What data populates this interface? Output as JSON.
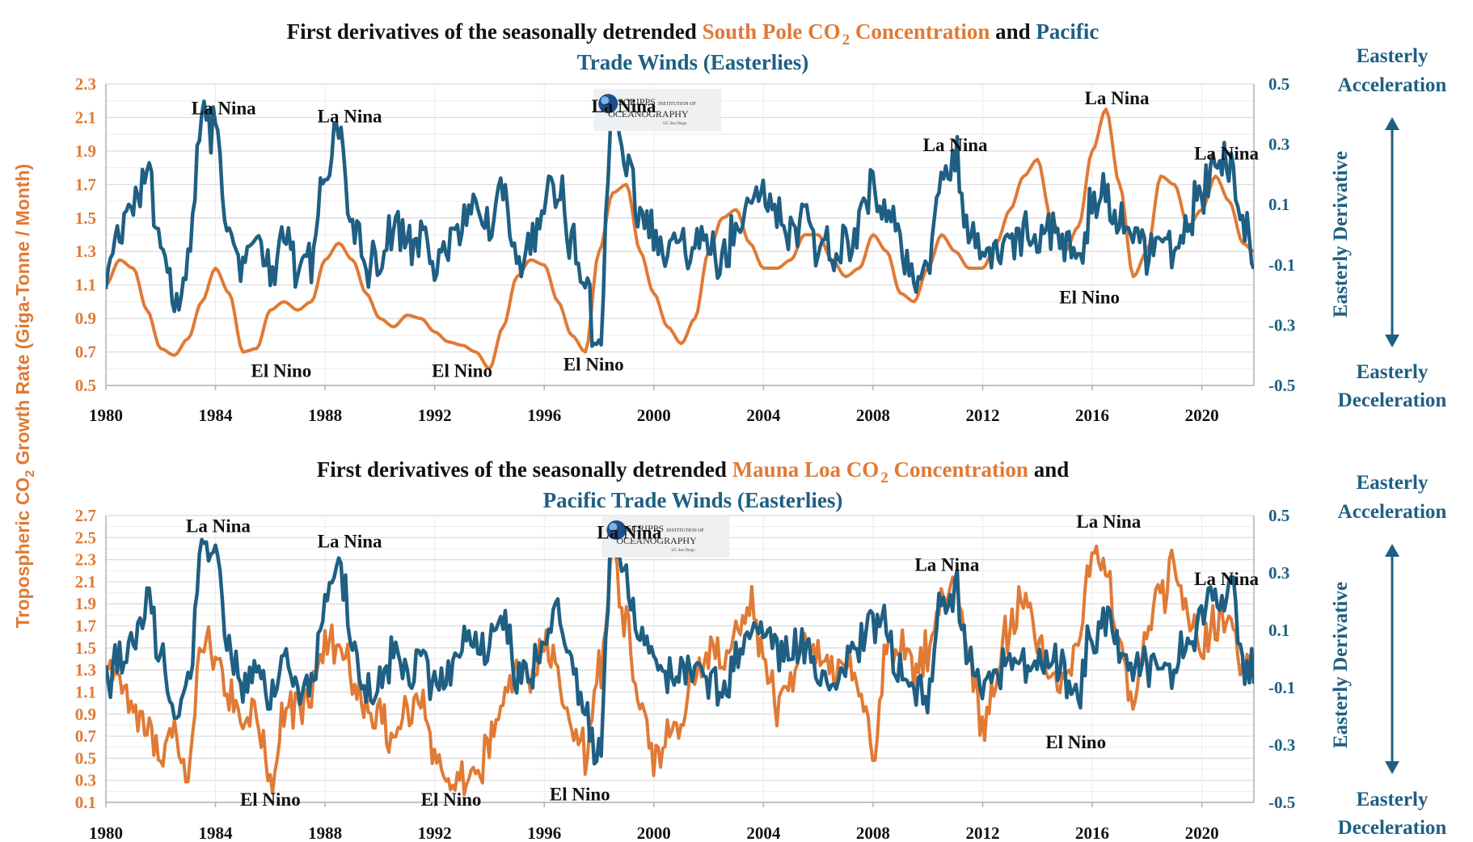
{
  "colors": {
    "co2": "#E07A35",
    "winds": "#1F5F83",
    "text": "#111111",
    "grid": "#D9D9D9",
    "axis": "#B0B0B0"
  },
  "logo": {
    "line1": "SCRIPPS",
    "line1b": "INSTITUTION OF",
    "line2": "OCEANOGRAPHY",
    "line3": "UC San Diego",
    "icon": "scripps-globe-icon"
  },
  "shared_left_axis_label": "Tropospheric CO",
  "shared_left_axis_sub": "2",
  "shared_left_axis_tail": " Growth Rate (Giga-Tonne / Month)",
  "chart_data": [
    {
      "type": "line",
      "title_parts": [
        {
          "text": "First derivatives of the seasonally detrended ",
          "color": "text"
        },
        {
          "text": "South Pole CO",
          "color": "co2"
        },
        {
          "text": "2",
          "color": "co2",
          "sub": true
        },
        {
          "text": " Concentration",
          "color": "co2"
        },
        {
          "text": " and ",
          "color": "text"
        },
        {
          "text": "Pacific",
          "color": "winds"
        }
      ],
      "title_line2": [
        {
          "text": "Trade Winds (Easterlies)",
          "color": "winds"
        }
      ],
      "x_ticks": [
        "1980",
        "1984",
        "1988",
        "1992",
        "1996",
        "2000",
        "2004",
        "2008",
        "2012",
        "2016",
        "2020"
      ],
      "xlim": [
        1980,
        2021.9
      ],
      "ylim_left": [
        0.5,
        2.3
      ],
      "y_ticks_left": [
        "0.5",
        "0.7",
        "0.9",
        "1.1",
        "1.3",
        "1.5",
        "1.7",
        "1.9",
        "2.1",
        "2.3"
      ],
      "ylim_right": [
        -0.5,
        0.5
      ],
      "y_ticks_right": [
        "-0.5",
        "-0.3",
        "-0.1",
        "0.1",
        "0.3",
        "0.5"
      ],
      "right_label": "Easterly Derivative",
      "side_top": [
        "Easterly",
        "Acceleration"
      ],
      "side_bottom": [
        "Easterly",
        "Deceleration"
      ],
      "grid": true,
      "series": [
        {
          "key": "co2",
          "axis": "left",
          "smooth": true,
          "x": [
            1980,
            1980.5,
            1981,
            1981.5,
            1982,
            1982.5,
            1983,
            1983.5,
            1984,
            1984.5,
            1985,
            1985.5,
            1986,
            1986.5,
            1987,
            1987.5,
            1988,
            1988.5,
            1989,
            1989.5,
            1990,
            1990.5,
            1991,
            1991.5,
            1992,
            1992.5,
            1993,
            1993.5,
            1994,
            1994.5,
            1995,
            1995.5,
            1996,
            1996.5,
            1997,
            1997.5,
            1998,
            1998.5,
            1999,
            1999.5,
            2000,
            2000.5,
            2001,
            2001.5,
            2002,
            2002.5,
            2003,
            2003.5,
            2004,
            2004.5,
            2005,
            2005.5,
            2006,
            2006.5,
            2007,
            2007.5,
            2008,
            2008.5,
            2009,
            2009.5,
            2010,
            2010.5,
            2011,
            2011.5,
            2012,
            2012.5,
            2013,
            2013.5,
            2014,
            2014.5,
            2015,
            2015.5,
            2016,
            2016.5,
            2017,
            2017.5,
            2018,
            2018.5,
            2019,
            2019.5,
            2020,
            2020.5,
            2021,
            2021.5,
            2021.9
          ],
          "y": [
            1.1,
            1.25,
            1.2,
            0.95,
            0.72,
            0.68,
            0.78,
            1.0,
            1.2,
            1.05,
            0.7,
            0.72,
            0.95,
            1.0,
            0.95,
            1.0,
            1.25,
            1.35,
            1.25,
            1.05,
            0.9,
            0.85,
            0.92,
            0.9,
            0.82,
            0.76,
            0.74,
            0.7,
            0.6,
            0.85,
            1.15,
            1.25,
            1.22,
            1.0,
            0.8,
            0.7,
            1.3,
            1.65,
            1.7,
            1.3,
            1.05,
            0.85,
            0.75,
            0.9,
            1.3,
            1.5,
            1.55,
            1.35,
            1.2,
            1.2,
            1.25,
            1.4,
            1.4,
            1.25,
            1.15,
            1.2,
            1.4,
            1.3,
            1.05,
            1.0,
            1.2,
            1.4,
            1.3,
            1.2,
            1.2,
            1.35,
            1.55,
            1.75,
            1.85,
            1.5,
            1.3,
            1.45,
            1.9,
            2.15,
            1.7,
            1.15,
            1.3,
            1.75,
            1.7,
            1.45,
            1.55,
            1.75,
            1.6,
            1.35,
            1.3
          ]
        },
        {
          "key": "winds",
          "axis": "right",
          "smooth": false,
          "x": [
            1980,
            1980.5,
            1981,
            1981.5,
            1982,
            1982.5,
            1983,
            1983.5,
            1984,
            1984.5,
            1985,
            1985.5,
            1986,
            1986.5,
            1987,
            1987.5,
            1988,
            1988.5,
            1989,
            1989.5,
            1990,
            1990.5,
            1991,
            1991.5,
            1992,
            1992.5,
            1993,
            1993.5,
            1994,
            1994.5,
            1995,
            1995.5,
            1996,
            1996.5,
            1997,
            1997.5,
            1998,
            1998.5,
            1999,
            1999.5,
            2000,
            2000.5,
            2001,
            2001.5,
            2002,
            2002.5,
            2003,
            2003.5,
            2004,
            2004.5,
            2005,
            2005.5,
            2006,
            2006.5,
            2007,
            2007.5,
            2008,
            2008.5,
            2009,
            2009.5,
            2010,
            2010.5,
            2011,
            2011.5,
            2012,
            2012.5,
            2013,
            2013.5,
            2014,
            2014.5,
            2015,
            2015.5,
            2016,
            2016.5,
            2017,
            2017.5,
            2018,
            2018.5,
            2019,
            2019.5,
            2020,
            2020.5,
            2021,
            2021.5,
            2021.9
          ],
          "y": [
            -0.1,
            0.0,
            0.1,
            0.2,
            0.0,
            -0.2,
            -0.1,
            0.4,
            0.35,
            0.0,
            -0.1,
            0.0,
            -0.15,
            0.0,
            -0.1,
            -0.1,
            0.2,
            0.35,
            0.05,
            -0.1,
            -0.1,
            0.05,
            -0.05,
            0.0,
            -0.1,
            -0.05,
            0.05,
            0.1,
            0.05,
            0.15,
            -0.05,
            -0.05,
            0.1,
            0.15,
            0.0,
            -0.2,
            -0.35,
            0.45,
            0.25,
            0.05,
            0.0,
            -0.05,
            -0.05,
            -0.05,
            -0.05,
            -0.1,
            0.0,
            0.1,
            0.1,
            0.05,
            0.0,
            0.05,
            -0.05,
            -0.05,
            -0.05,
            0.05,
            0.15,
            0.1,
            -0.05,
            -0.1,
            -0.1,
            0.2,
            0.25,
            0.0,
            -0.05,
            -0.05,
            0.0,
            0.0,
            -0.05,
            0.0,
            -0.05,
            -0.1,
            0.1,
            0.15,
            0.05,
            0.0,
            -0.05,
            0.0,
            -0.05,
            0.05,
            0.15,
            0.2,
            0.25,
            0.0,
            -0.05
          ]
        }
      ],
      "annotations": [
        {
          "text": "La Nina",
          "x": 1984.3,
          "y": 2.12
        },
        {
          "text": "La Nina",
          "x": 1988.9,
          "y": 2.07
        },
        {
          "text": "La Nina",
          "x": 1998.9,
          "y": 2.13
        },
        {
          "text": "La Nina",
          "x": 2011.0,
          "y": 1.9
        },
        {
          "text": "La Nina",
          "x": 2016.9,
          "y": 2.18
        },
        {
          "text": "La Nina",
          "x": 2020.9,
          "y": 1.85
        },
        {
          "text": "El Nino",
          "x": 1986.4,
          "y": 0.55
        },
        {
          "text": "El Nino",
          "x": 1993.0,
          "y": 0.55
        },
        {
          "text": "El Nino",
          "x": 1997.8,
          "y": 0.59
        },
        {
          "text": "El Nino",
          "x": 2015.9,
          "y": 0.99
        }
      ],
      "logo_pos": {
        "x": 1997.8,
        "y": 2.27
      }
    },
    {
      "type": "line",
      "title_parts": [
        {
          "text": "First derivatives of the seasonally detrended ",
          "color": "text"
        },
        {
          "text": "Mauna Loa CO",
          "color": "co2"
        },
        {
          "text": "2",
          "color": "co2",
          "sub": true
        },
        {
          "text": " Concentration",
          "color": "co2"
        },
        {
          "text": " and",
          "color": "text"
        }
      ],
      "title_line2": [
        {
          "text": "Pacific Trade Winds (Easterlies)",
          "color": "winds"
        }
      ],
      "x_ticks": [
        "1980",
        "1984",
        "1988",
        "1992",
        "1996",
        "2000",
        "2004",
        "2008",
        "2012",
        "2016",
        "2020"
      ],
      "xlim": [
        1980,
        2021.9
      ],
      "ylim_left": [
        0.1,
        2.7
      ],
      "y_ticks_left": [
        "0.1",
        "0.3",
        "0.5",
        "0.7",
        "0.9",
        "1.1",
        "1.3",
        "1.5",
        "1.7",
        "1.9",
        "2.1",
        "2.3",
        "2.5",
        "2.7"
      ],
      "ylim_right": [
        -0.5,
        0.5
      ],
      "y_ticks_right": [
        "-0.5",
        "-0.3",
        "-0.1",
        "0.1",
        "0.3",
        "0.5"
      ],
      "right_label": "Easterly Derivative",
      "side_top": [
        "Easterly",
        "Acceleration"
      ],
      "side_bottom": [
        "Easterly",
        "Deceleration"
      ],
      "grid": true,
      "series": [
        {
          "key": "co2",
          "axis": "left",
          "smooth": false,
          "x": [
            1980,
            1980.5,
            1981,
            1981.5,
            1982,
            1982.5,
            1983,
            1983.5,
            1984,
            1984.5,
            1985,
            1985.5,
            1986,
            1986.5,
            1987,
            1987.5,
            1988,
            1988.5,
            1989,
            1989.5,
            1990,
            1990.5,
            1991,
            1991.5,
            1992,
            1992.5,
            1993,
            1993.5,
            1994,
            1994.5,
            1995,
            1995.5,
            1996,
            1996.5,
            1997,
            1997.5,
            1998,
            1998.5,
            1999,
            1999.5,
            2000,
            2000.5,
            2001,
            2001.5,
            2002,
            2002.5,
            2003,
            2003.5,
            2004,
            2004.5,
            2005,
            2005.5,
            2006,
            2006.5,
            2007,
            2007.5,
            2008,
            2008.5,
            2009,
            2009.5,
            2010,
            2010.5,
            2011,
            2011.5,
            2012,
            2012.5,
            2013,
            2013.5,
            2014,
            2014.5,
            2015,
            2015.5,
            2016,
            2016.5,
            2017,
            2017.5,
            2018,
            2018.5,
            2019,
            2019.5,
            2020,
            2020.5,
            2021,
            2021.5,
            2021.9
          ],
          "y": [
            1.3,
            1.2,
            1.0,
            0.8,
            0.55,
            0.7,
            0.3,
            1.6,
            1.4,
            1.1,
            0.8,
            0.9,
            0.3,
            0.9,
            1.0,
            1.1,
            1.5,
            1.6,
            1.2,
            0.9,
            0.8,
            0.7,
            0.9,
            1.1,
            0.5,
            0.3,
            0.4,
            0.35,
            0.6,
            1.1,
            1.2,
            1.3,
            1.5,
            1.2,
            0.9,
            0.5,
            1.3,
            2.3,
            1.7,
            1.0,
            0.5,
            0.7,
            0.8,
            1.2,
            1.5,
            1.4,
            1.6,
            1.9,
            1.5,
            1.0,
            1.2,
            1.6,
            1.5,
            1.3,
            1.4,
            1.1,
            0.5,
            1.5,
            1.6,
            1.3,
            1.5,
            2.0,
            2.1,
            1.5,
            0.8,
            1.2,
            1.7,
            2.0,
            1.6,
            1.2,
            1.3,
            1.6,
            2.4,
            2.2,
            1.5,
            1.0,
            1.6,
            2.0,
            2.2,
            1.8,
            1.5,
            1.7,
            1.8,
            1.3,
            1.4
          ]
        },
        {
          "key": "winds",
          "axis": "right",
          "smooth": false,
          "x": [
            1980,
            1980.5,
            1981,
            1981.5,
            1982,
            1982.5,
            1983,
            1983.5,
            1984,
            1984.5,
            1985,
            1985.5,
            1986,
            1986.5,
            1987,
            1987.5,
            1988,
            1988.5,
            1989,
            1989.5,
            1990,
            1990.5,
            1991,
            1991.5,
            1992,
            1992.5,
            1993,
            1993.5,
            1994,
            1994.5,
            1995,
            1995.5,
            1996,
            1996.5,
            1997,
            1997.5,
            1998,
            1998.5,
            1999,
            1999.5,
            2000,
            2000.5,
            2001,
            2001.5,
            2002,
            2002.5,
            2003,
            2003.5,
            2004,
            2004.5,
            2005,
            2005.5,
            2006,
            2006.5,
            2007,
            2007.5,
            2008,
            2008.5,
            2009,
            2009.5,
            2010,
            2010.5,
            2011,
            2011.5,
            2012,
            2012.5,
            2013,
            2013.5,
            2014,
            2014.5,
            2015,
            2015.5,
            2016,
            2016.5,
            2017,
            2017.5,
            2018,
            2018.5,
            2019,
            2019.5,
            2020,
            2020.5,
            2021,
            2021.5,
            2021.9
          ],
          "y": [
            -0.1,
            0.0,
            0.1,
            0.2,
            0.0,
            -0.2,
            -0.1,
            0.4,
            0.35,
            0.0,
            -0.1,
            0.0,
            -0.15,
            0.0,
            -0.1,
            -0.1,
            0.2,
            0.35,
            0.05,
            -0.1,
            -0.1,
            0.05,
            -0.05,
            0.0,
            -0.1,
            -0.05,
            0.05,
            0.1,
            0.05,
            0.15,
            -0.05,
            -0.05,
            0.1,
            0.15,
            0.0,
            -0.2,
            -0.35,
            0.45,
            0.25,
            0.05,
            0.0,
            -0.05,
            -0.05,
            -0.05,
            -0.05,
            -0.1,
            0.0,
            0.1,
            0.1,
            0.05,
            0.0,
            0.05,
            -0.05,
            -0.05,
            -0.05,
            0.05,
            0.15,
            0.1,
            -0.05,
            -0.1,
            -0.1,
            0.2,
            0.25,
            0.0,
            -0.05,
            -0.05,
            0.0,
            0.0,
            -0.05,
            0.0,
            -0.05,
            -0.1,
            0.1,
            0.15,
            0.05,
            0.0,
            -0.05,
            0.0,
            -0.05,
            0.05,
            0.15,
            0.2,
            0.25,
            0.0,
            -0.05
          ]
        }
      ],
      "annotations": [
        {
          "text": "La Nina",
          "x": 1984.1,
          "y": 2.55
        },
        {
          "text": "La Nina",
          "x": 1988.9,
          "y": 2.41
        },
        {
          "text": "La Nina",
          "x": 1999.1,
          "y": 2.49
        },
        {
          "text": "La Nina",
          "x": 2010.7,
          "y": 2.2
        },
        {
          "text": "La Nina",
          "x": 2016.6,
          "y": 2.59
        },
        {
          "text": "La Nina",
          "x": 2020.9,
          "y": 2.07
        },
        {
          "text": "El Nino",
          "x": 1986.0,
          "y": 0.07
        },
        {
          "text": "El Nino",
          "x": 1992.6,
          "y": 0.07
        },
        {
          "text": "El Nino",
          "x": 1997.3,
          "y": 0.12
        },
        {
          "text": "El Nino",
          "x": 2015.4,
          "y": 0.59
        }
      ],
      "logo_pos": {
        "x": 1998.1,
        "y": 2.7
      }
    }
  ]
}
